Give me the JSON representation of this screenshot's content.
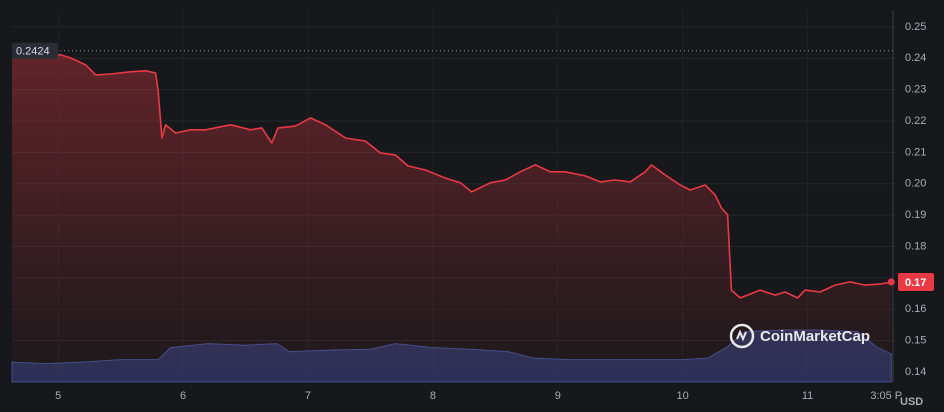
{
  "chart_data": {
    "type": "line",
    "x": [
      4.63,
      5.02,
      5.1,
      5.22,
      5.3,
      5.42,
      5.58,
      5.7,
      5.78,
      5.8,
      5.83,
      5.86,
      5.94,
      6.06,
      6.18,
      6.38,
      6.54,
      6.63,
      6.71,
      6.76,
      6.9,
      7.02,
      7.14,
      7.3,
      7.46,
      7.58,
      7.7,
      7.8,
      7.94,
      8.1,
      8.22,
      8.31,
      8.46,
      8.58,
      8.7,
      8.82,
      8.94,
      9.06,
      9.22,
      9.34,
      9.46,
      9.58,
      9.7,
      9.75,
      9.86,
      9.98,
      10.06,
      10.18,
      10.26,
      10.31,
      10.36,
      10.39,
      10.46,
      10.52,
      10.62,
      10.74,
      10.82,
      10.92,
      10.98,
      11.1,
      11.22,
      11.34,
      11.46,
      11.58,
      11.67
    ],
    "values": [
      0.2417,
      0.2411,
      0.2401,
      0.2379,
      0.2347,
      0.235,
      0.2357,
      0.236,
      0.2353,
      0.2299,
      0.2146,
      0.2188,
      0.2162,
      0.2172,
      0.2172,
      0.2188,
      0.2172,
      0.2178,
      0.213,
      0.2178,
      0.2184,
      0.221,
      0.2188,
      0.2146,
      0.2136,
      0.2098,
      0.2092,
      0.2057,
      0.2044,
      0.2018,
      0.2003,
      0.1974,
      0.2003,
      0.2012,
      0.2038,
      0.206,
      0.2038,
      0.2038,
      0.2025,
      0.2006,
      0.2012,
      0.2006,
      0.2038,
      0.206,
      0.2028,
      0.1996,
      0.198,
      0.1996,
      0.1964,
      0.1923,
      0.1901,
      0.1661,
      0.1636,
      0.1645,
      0.1661,
      0.1645,
      0.1655,
      0.1636,
      0.1661,
      0.1655,
      0.1677,
      0.1687,
      0.1677,
      0.168,
      0.1687
    ],
    "color": "#ea3943",
    "xlim": [
      4.63,
      11.7
    ],
    "xticks": [
      5,
      6,
      7,
      8,
      9,
      10,
      11,
      {
        "value": 11.63,
        "label": "3:05 P"
      }
    ],
    "ylim": [
      0.1368,
      0.2554
    ],
    "yticks": [
      0.14,
      0.15,
      0.16,
      0.17,
      0.18,
      0.19,
      {
        "value": 0.2,
        "label": "0.20"
      },
      0.21,
      0.22,
      0.23,
      0.24,
      0.25
    ],
    "grid": true,
    "y_unit": "USD",
    "reference_line": 0.2424,
    "current_price": {
      "value": 0.1687,
      "label": "0.17"
    },
    "volume": {
      "x": [
        4.63,
        4.9,
        5.2,
        5.5,
        5.8,
        5.9,
        6.2,
        6.5,
        6.75,
        6.85,
        7.2,
        7.5,
        7.7,
        8.0,
        8.3,
        8.6,
        8.8,
        9.1,
        9.4,
        9.7,
        10.0,
        10.2,
        10.35,
        10.5,
        10.8,
        11.1,
        11.4,
        11.55,
        11.67
      ],
      "values": [
        25,
        23,
        25,
        28,
        28,
        43,
        48,
        46,
        48,
        38,
        40,
        41,
        48,
        43,
        41,
        38,
        30,
        28,
        28,
        28,
        28,
        30,
        43,
        63,
        65,
        65,
        63,
        44,
        35
      ],
      "ylim": [
        0,
        100
      ],
      "color": "#2b3560"
    },
    "watermark": "CoinMarketCap"
  }
}
